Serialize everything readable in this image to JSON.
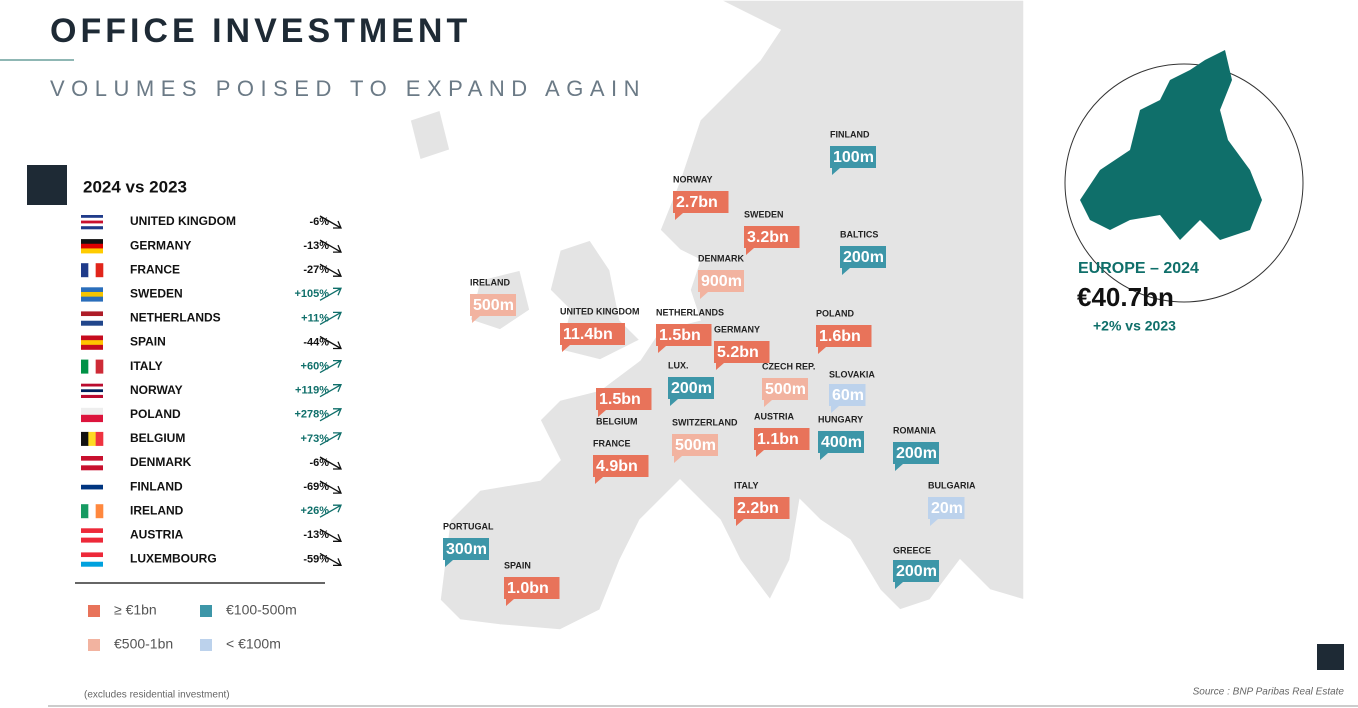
{
  "header": {
    "title": "OFFICE  INVESTMENT",
    "subtitle": "VOLUMES POISED TO EXPAND AGAIN"
  },
  "changes": {
    "title": "2024 vs 2023",
    "rows": [
      {
        "country": "UNITED KINGDOM",
        "change": "-6%"
      },
      {
        "country": "GERMANY",
        "change": "-13%"
      },
      {
        "country": "FRANCE",
        "change": "-27%"
      },
      {
        "country": "SWEDEN",
        "change": "+105%"
      },
      {
        "country": "NETHERLANDS",
        "change": "+11%"
      },
      {
        "country": "SPAIN",
        "change": "-44%"
      },
      {
        "country": "ITALY",
        "change": "+60%"
      },
      {
        "country": "NORWAY",
        "change": "+119%"
      },
      {
        "country": "POLAND",
        "change": "+278%"
      },
      {
        "country": "BELGIUM",
        "change": "+73%"
      },
      {
        "country": "DENMARK",
        "change": "-6%"
      },
      {
        "country": "FINLAND",
        "change": "-69%"
      },
      {
        "country": "IRELAND",
        "change": "+26%"
      },
      {
        "country": "AUSTRIA",
        "change": "-13%"
      },
      {
        "country": "LUXEMBOURG",
        "change": "-59%"
      }
    ]
  },
  "legend": [
    {
      "label": "≥ €1bn",
      "color": "#e8735a"
    },
    {
      "label": "€100-500m",
      "color": "#3d96a8"
    },
    {
      "label": "€500-1bn",
      "color": "#f2b3a0"
    },
    {
      "label": "< €100m",
      "color": "#bcd2ec"
    }
  ],
  "map": {
    "callouts": [
      {
        "name": "IRELAND",
        "volume": "500m",
        "color": "#f2b3a0"
      },
      {
        "name": "UNITED KINGDOM",
        "volume": "11.4bn",
        "color": "#e8735a"
      },
      {
        "name": "NORWAY",
        "volume": "2.7bn",
        "color": "#e8735a"
      },
      {
        "name": "SWEDEN",
        "volume": "3.2bn",
        "color": "#e8735a"
      },
      {
        "name": "FINLAND",
        "volume": "100m",
        "color": "#3d96a8"
      },
      {
        "name": "BALTICS",
        "volume": "200m",
        "color": "#3d96a8"
      },
      {
        "name": "DENMARK",
        "volume": "900m",
        "color": "#f2b3a0"
      },
      {
        "name": "NETHERLANDS",
        "volume": "1.5bn",
        "color": "#e8735a"
      },
      {
        "name": "GERMANY",
        "volume": "5.2bn",
        "color": "#e8735a"
      },
      {
        "name": "POLAND",
        "volume": "1.6bn",
        "color": "#e8735a"
      },
      {
        "name": "LUX.",
        "volume": "200m",
        "color": "#3d96a8"
      },
      {
        "name": "BELGIUM",
        "volume": "1.5bn",
        "color": "#e8735a"
      },
      {
        "name": "CZECH REP.",
        "volume": "500m",
        "color": "#f2b3a0"
      },
      {
        "name": "SLOVAKIA",
        "volume": "60m",
        "color": "#bcd2ec"
      },
      {
        "name": "SWITZERLAND",
        "volume": "500m",
        "color": "#f2b3a0"
      },
      {
        "name": "AUSTRIA",
        "volume": "1.1bn",
        "color": "#e8735a"
      },
      {
        "name": "HUNGARY",
        "volume": "400m",
        "color": "#3d96a8"
      },
      {
        "name": "ROMANIA",
        "volume": "200m",
        "color": "#3d96a8"
      },
      {
        "name": "FRANCE",
        "volume": "4.9bn",
        "color": "#e8735a"
      },
      {
        "name": "ITALY",
        "volume": "2.2bn",
        "color": "#e8735a"
      },
      {
        "name": "BULGARIA",
        "volume": "20m",
        "color": "#bcd2ec"
      },
      {
        "name": "PORTUGAL",
        "volume": "300m",
        "color": "#3d96a8"
      },
      {
        "name": "SPAIN",
        "volume": "1.0bn",
        "color": "#e8735a"
      },
      {
        "name": "GREECE",
        "volume": "200m",
        "color": "#3d96a8"
      }
    ]
  },
  "europe": {
    "label": "EUROPE – 2024",
    "total": "€40.7bn",
    "change": "+2% vs 2023"
  },
  "footer": {
    "note": "(excludes residential investment)",
    "source": "Source : BNP Paribas Real Estate"
  }
}
